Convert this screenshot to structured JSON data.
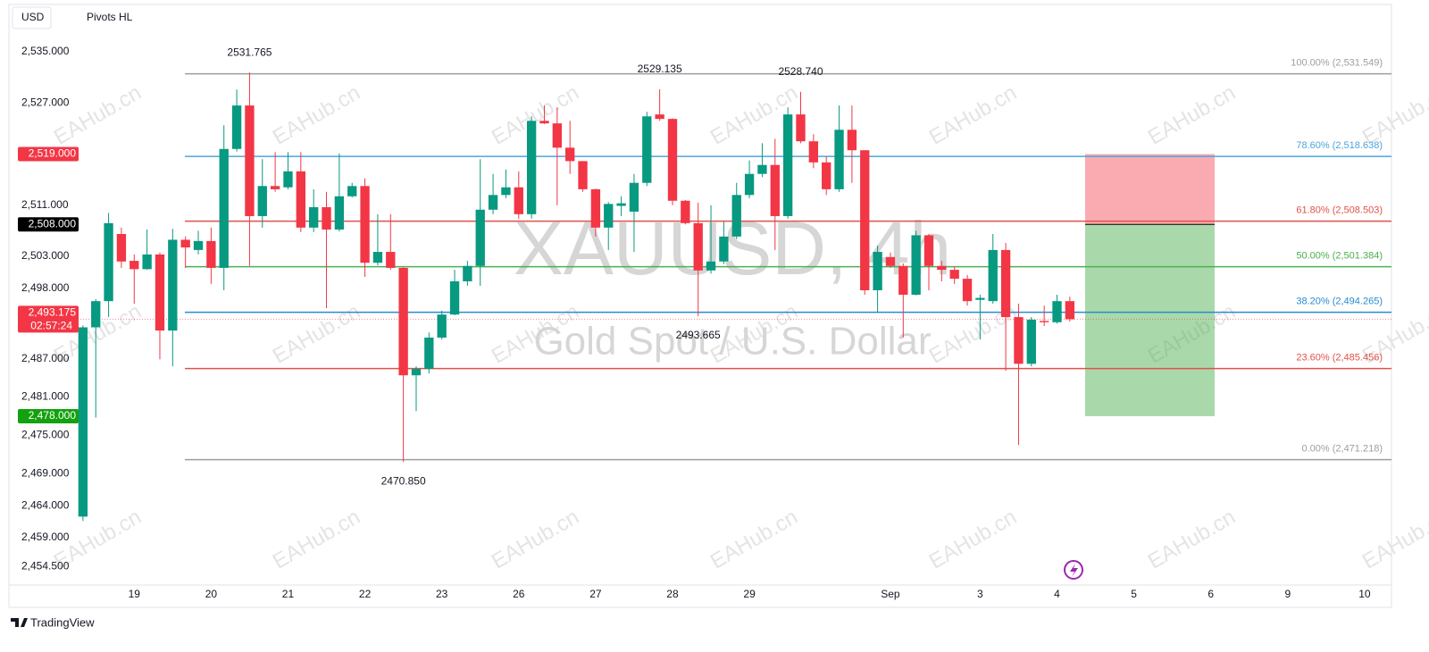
{
  "header": {
    "currency": "USD",
    "indicator": "Pivots HL"
  },
  "footer": {
    "brand": "TradingView"
  },
  "chart_data": {
    "type": "candlestick",
    "title": "XAUUSD, 4h",
    "subtitle": "Gold Spot / U.S. Dollar",
    "watermark": "EAHub.cn",
    "up_color": "#089981",
    "down_color": "#f23645",
    "open": [
      2462.3,
      2491.9,
      2496.0,
      2506.5,
      2502.3,
      2501.0,
      2503.3,
      2491.4,
      2505.6,
      2504.0,
      2505.4,
      2501.2,
      2519.8,
      2526.6,
      2509.3,
      2514.0,
      2513.8,
      2516.3,
      2507.5,
      2510.7,
      2507.2,
      2512.4,
      2514.0,
      2502.0,
      2503.7,
      2501.2,
      2484.4,
      2485.4,
      2490.3,
      2493.9,
      2499.1,
      2501.5,
      2510.3,
      2512.6,
      2513.8,
      2509.6,
      2524.2,
      2523.8,
      2520.0,
      2517.9,
      2513.5,
      2507.5,
      2510.9,
      2510.0,
      2514.5,
      2525.2,
      2524.5,
      2511.7,
      2508.2,
      2500.8,
      2502.2,
      2506.1,
      2512.6,
      2515.9,
      2517.3,
      2509.3,
      2525.2,
      2521.0,
      2517.7,
      2513.5,
      2522.8,
      2519.6,
      2497.7,
      2502.9,
      2501.5,
      2497.0,
      2506.3,
      2501.5,
      2500.9,
      2499.5,
      2496.2,
      2496.0,
      2504.0,
      2493.5,
      2486.2,
      2492.9,
      2492.7,
      2496.0
    ],
    "high": [
      2492.2,
      2496.3,
      2509.8,
      2507.5,
      2503.3,
      2507.2,
      2503.6,
      2507.3,
      2506.1,
      2507.0,
      2507.5,
      2523.5,
      2529.1,
      2531.765,
      2518.2,
      2519.3,
      2519.3,
      2519.3,
      2513.5,
      2513.1,
      2519.1,
      2514.5,
      2515.2,
      2509.6,
      2509.6,
      2501.3,
      2485.8,
      2491.1,
      2494.5,
      2500.9,
      2502.3,
      2518.2,
      2515.9,
      2516.6,
      2516.3,
      2524.9,
      2526.6,
      2526.3,
      2524.2,
      2517.9,
      2513.6,
      2511.5,
      2512.4,
      2515.9,
      2525.6,
      2529.135,
      2524.6,
      2511.8,
      2511.4,
      2511.0,
      2508.4,
      2514.5,
      2518.0,
      2520.7,
      2521.4,
      2526.3,
      2528.74,
      2522.1,
      2518.6,
      2526.6,
      2526.6,
      2519.6,
      2504.7,
      2503.6,
      2501.9,
      2507.0,
      2506.5,
      2502.3,
      2501.4,
      2500.1,
      2497.0,
      2506.5,
      2505.1,
      2495.6,
      2493.5,
      2495.3,
      2497.0,
      2496.7
    ],
    "low": [
      2461.6,
      2477.8,
      2493.5,
      2501.2,
      2495.6,
      2500.9,
      2486.9,
      2485.8,
      2501.2,
      2503.3,
      2498.7,
      2497.7,
      2519.4,
      2501.5,
      2507.5,
      2513.1,
      2513.5,
      2506.8,
      2506.8,
      2494.9,
      2506.9,
      2512.2,
      2499.8,
      2501.6,
      2500.9,
      2470.85,
      2478.8,
      2484.7,
      2490.0,
      2493.8,
      2498.4,
      2498.4,
      2509.6,
      2512.1,
      2508.9,
      2508.9,
      2523.7,
      2511.0,
      2515.9,
      2513.1,
      2506.1,
      2504.0,
      2509.3,
      2503.7,
      2514.0,
      2524.2,
      2511.0,
      2508.0,
      2493.665,
      2500.3,
      2501.8,
      2505.7,
      2512.1,
      2515.4,
      2504.0,
      2508.9,
      2520.7,
      2516.8,
      2512.6,
      2513.1,
      2514.5,
      2497.0,
      2494.2,
      2501.2,
      2490.3,
      2496.9,
      2497.7,
      2499.1,
      2498.7,
      2495.3,
      2490.0,
      2495.6,
      2485.1,
      2473.5,
      2485.8,
      2492.1,
      2492.5,
      2492.8
    ],
    "close": [
      2491.9,
      2496.0,
      2508.2,
      2502.2,
      2501.0,
      2503.3,
      2491.4,
      2505.6,
      2504.4,
      2505.4,
      2501.2,
      2519.8,
      2526.6,
      2509.3,
      2514.0,
      2513.5,
      2516.3,
      2507.5,
      2510.7,
      2507.2,
      2512.4,
      2514.0,
      2502.0,
      2503.7,
      2501.2,
      2484.4,
      2485.4,
      2490.3,
      2493.9,
      2499.1,
      2501.5,
      2510.3,
      2512.6,
      2513.8,
      2509.6,
      2524.2,
      2523.8,
      2520.0,
      2517.9,
      2513.5,
      2507.5,
      2511.2,
      2511.3,
      2514.5,
      2524.9,
      2524.5,
      2511.7,
      2508.2,
      2500.8,
      2502.2,
      2506.1,
      2512.6,
      2515.9,
      2517.3,
      2509.3,
      2525.2,
      2521.0,
      2517.7,
      2513.5,
      2522.8,
      2519.6,
      2497.7,
      2503.7,
      2501.5,
      2497.0,
      2506.3,
      2501.5,
      2500.9,
      2499.5,
      2496.0,
      2496.5,
      2504.0,
      2493.5,
      2486.2,
      2493.1,
      2492.7,
      2496.0,
      2493.175
    ],
    "pivots": [
      {
        "value": 2531.765,
        "label": "2531.765"
      },
      {
        "value": 2529.135,
        "label": "2529.135"
      },
      {
        "value": 2528.74,
        "label": "2528.740"
      },
      {
        "value": 2493.665,
        "label": "2493.665"
      },
      {
        "value": 2470.85,
        "label": "2470.850"
      }
    ],
    "fib_levels": [
      {
        "value": 2531.549,
        "label": "100.00% (2,531.549)",
        "color": "#9e9e9e"
      },
      {
        "value": 2518.638,
        "label": "78.60% (2,518.638)",
        "color": "#4ea5d9"
      },
      {
        "value": 2508.503,
        "label": "61.80% (2,508.503)",
        "color": "#e0524a"
      },
      {
        "value": 2501.384,
        "label": "50.00% (2,501.384)",
        "color": "#4caf50"
      },
      {
        "value": 2494.265,
        "label": "38.20% (2,494.265)",
        "color": "#2a8ad0"
      },
      {
        "value": 2485.456,
        "label": "23.60% (2,485.456)",
        "color": "#e0524a"
      },
      {
        "value": 2471.218,
        "label": "0.00% (2,471.218)",
        "color": "#9e9e9e"
      }
    ],
    "position": {
      "stop": {
        "value": 2519,
        "label": "2,519.000",
        "color": "#f23645"
      },
      "entry": {
        "value": 2508,
        "label": "2,508.000",
        "color": "#000000"
      },
      "target": {
        "value": 2478,
        "label": "2,478.000",
        "color": "#13a10e"
      }
    },
    "last_price": {
      "value": 2493.175,
      "label": "2,493.175",
      "countdown": "02:57:24",
      "color": "#f23645"
    },
    "ylim": [
      2451.6,
      2542.4
    ],
    "yticks": [
      {
        "value": 2535,
        "label": "2,535.000"
      },
      {
        "value": 2527,
        "label": "2,527.000"
      },
      {
        "value": 2511,
        "label": "2,511.000"
      },
      {
        "value": 2503,
        "label": "2,503.000"
      },
      {
        "value": 2498,
        "label": "2,498.000"
      },
      {
        "value": 2487,
        "label": "2,487.000"
      },
      {
        "value": 2481,
        "label": "2,481.000"
      },
      {
        "value": 2475,
        "label": "2,475.000"
      },
      {
        "value": 2469,
        "label": "2,469.000"
      },
      {
        "value": 2464,
        "label": "2,464.000"
      },
      {
        "value": 2459,
        "label": "2,459.000"
      },
      {
        "value": 2454.5,
        "label": "2,454.500"
      }
    ],
    "xlim": [
      -0.2,
      101.4
    ],
    "xticks": [
      {
        "value": 4,
        "label": "19"
      },
      {
        "value": 10,
        "label": "20"
      },
      {
        "value": 16,
        "label": "21"
      },
      {
        "value": 22,
        "label": "22"
      },
      {
        "value": 28,
        "label": "23"
      },
      {
        "value": 34,
        "label": "26"
      },
      {
        "value": 40,
        "label": "27"
      },
      {
        "value": 46,
        "label": "28"
      },
      {
        "value": 52,
        "label": "29"
      },
      {
        "value": 63,
        "label": "Sep"
      },
      {
        "value": 70,
        "label": "3"
      },
      {
        "value": 76,
        "label": "4"
      },
      {
        "value": 82,
        "label": "5"
      },
      {
        "value": 88,
        "label": "6"
      },
      {
        "value": 94,
        "label": "9"
      },
      {
        "value": 100,
        "label": "10"
      }
    ]
  }
}
